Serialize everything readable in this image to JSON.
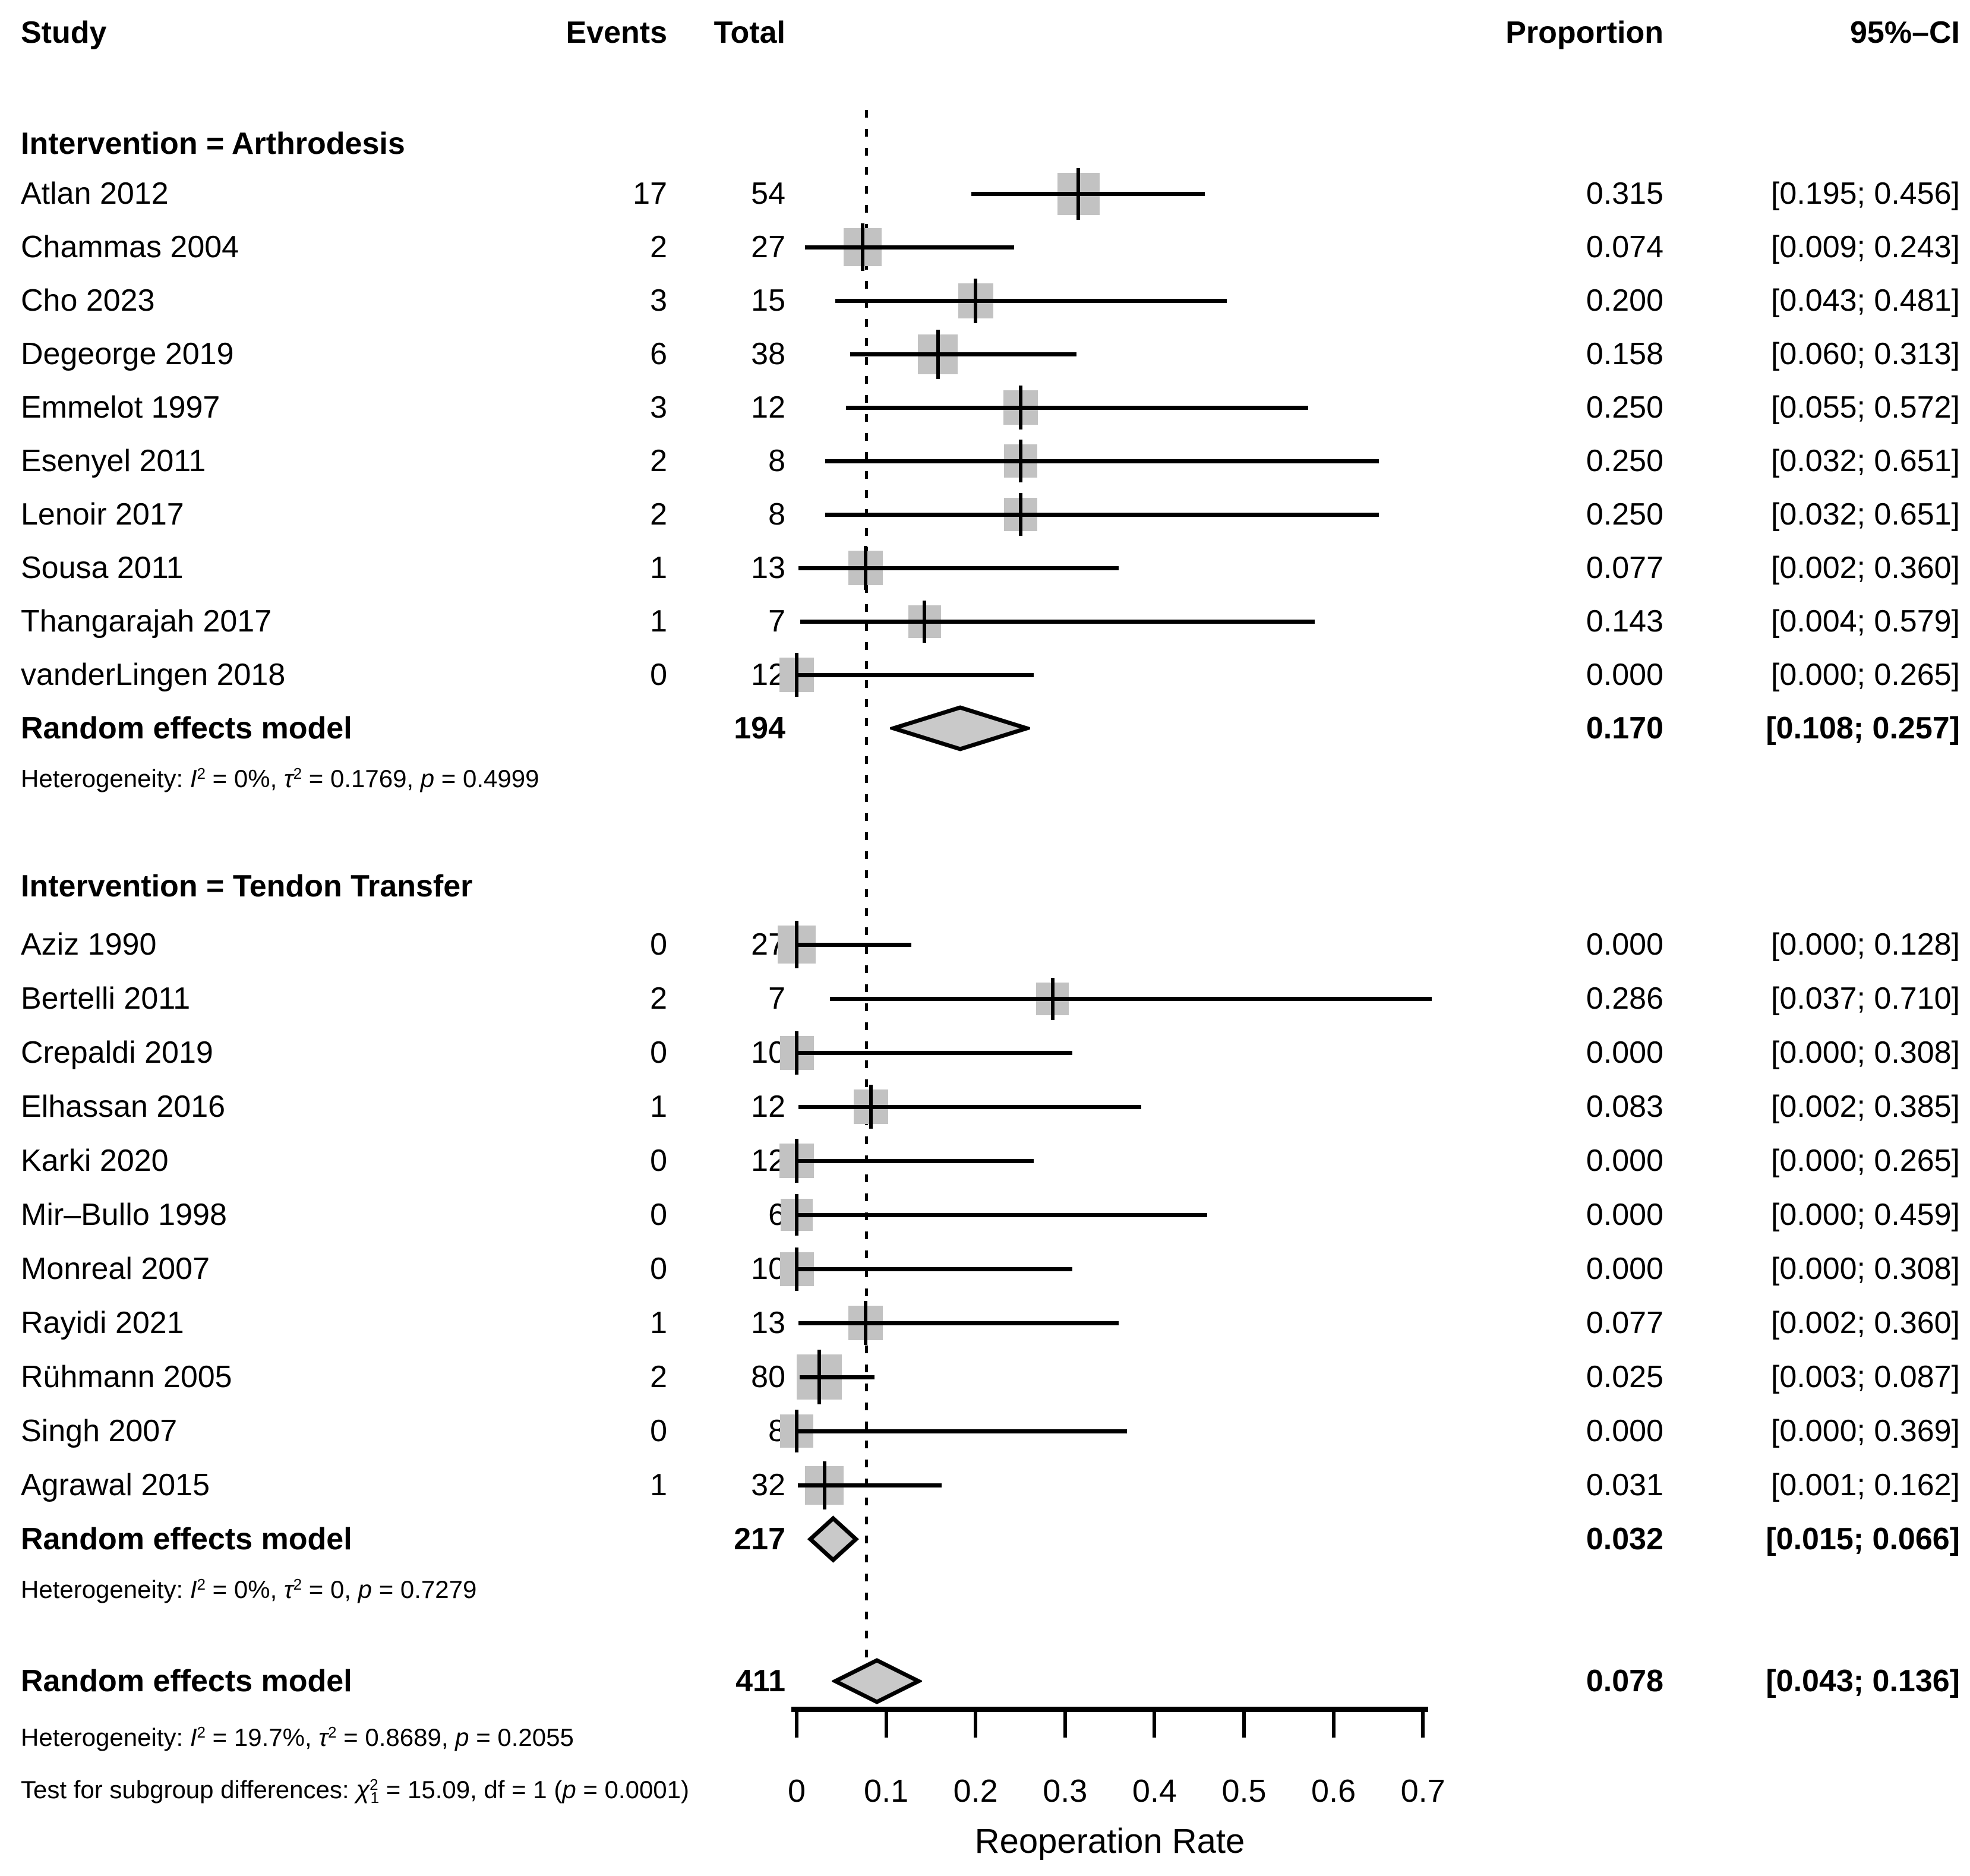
{
  "header": {
    "study": "Study",
    "events": "Events",
    "total": "Total",
    "proportion": "Proportion",
    "ci": "95%–CI"
  },
  "colors": {
    "background": "#ffffff",
    "text": "#000000",
    "line": "#000000",
    "square_fill": "#c2c2c2",
    "diamond_fill": "#c9c9c9"
  },
  "chart_data": {
    "type": "forest",
    "xlabel": "Reoperation Rate",
    "xlim": [
      0,
      0.7
    ],
    "x_ticks": [
      0,
      0.1,
      0.2,
      0.3,
      0.4,
      0.5,
      0.6,
      0.7
    ],
    "reference_line": 0.078,
    "grid": false,
    "groups": [
      {
        "heading": "Intervention = Arthrodesis",
        "studies": [
          {
            "label": "Atlan 2012",
            "events": 17,
            "total": 54,
            "proportion": 0.315,
            "ci_lower": 0.195,
            "ci_upper": 0.456
          },
          {
            "label": "Chammas 2004",
            "events": 2,
            "total": 27,
            "proportion": 0.074,
            "ci_lower": 0.009,
            "ci_upper": 0.243
          },
          {
            "label": "Cho 2023",
            "events": 3,
            "total": 15,
            "proportion": 0.2,
            "ci_lower": 0.043,
            "ci_upper": 0.481
          },
          {
            "label": "Degeorge 2019",
            "events": 6,
            "total": 38,
            "proportion": 0.158,
            "ci_lower": 0.06,
            "ci_upper": 0.313
          },
          {
            "label": "Emmelot 1997",
            "events": 3,
            "total": 12,
            "proportion": 0.25,
            "ci_lower": 0.055,
            "ci_upper": 0.572
          },
          {
            "label": "Esenyel 2011",
            "events": 2,
            "total": 8,
            "proportion": 0.25,
            "ci_lower": 0.032,
            "ci_upper": 0.651
          },
          {
            "label": "Lenoir 2017",
            "events": 2,
            "total": 8,
            "proportion": 0.25,
            "ci_lower": 0.032,
            "ci_upper": 0.651
          },
          {
            "label": "Sousa 2011",
            "events": 1,
            "total": 13,
            "proportion": 0.077,
            "ci_lower": 0.002,
            "ci_upper": 0.36
          },
          {
            "label": "Thangarajah 2017",
            "events": 1,
            "total": 7,
            "proportion": 0.143,
            "ci_lower": 0.004,
            "ci_upper": 0.579
          },
          {
            "label": "vanderLingen 2018",
            "events": 0,
            "total": 12,
            "proportion": 0.0,
            "ci_lower": 0.0,
            "ci_upper": 0.265
          }
        ],
        "summary": {
          "label": "Random effects model",
          "total": 194,
          "proportion": 0.17,
          "ci_lower": 0.108,
          "ci_upper": 0.257
        },
        "heterogeneity": [
          {
            "t": "Heterogeneity: "
          },
          {
            "t": "I",
            "s": "i"
          },
          {
            "t": "2",
            "s": "sup"
          },
          {
            "t": " = 0%, "
          },
          {
            "t": "τ",
            "s": "i"
          },
          {
            "t": "2",
            "s": "sup"
          },
          {
            "t": " = 0.1769, "
          },
          {
            "t": "p",
            "s": "i"
          },
          {
            "t": " = 0.4999"
          }
        ]
      },
      {
        "heading": "Intervention = Tendon Transfer",
        "studies": [
          {
            "label": "Aziz 1990",
            "events": 0,
            "total": 27,
            "proportion": 0.0,
            "ci_lower": 0.0,
            "ci_upper": 0.128
          },
          {
            "label": "Bertelli 2011",
            "events": 2,
            "total": 7,
            "proportion": 0.286,
            "ci_lower": 0.037,
            "ci_upper": 0.71
          },
          {
            "label": "Crepaldi 2019",
            "events": 0,
            "total": 10,
            "proportion": 0.0,
            "ci_lower": 0.0,
            "ci_upper": 0.308
          },
          {
            "label": "Elhassan 2016",
            "events": 1,
            "total": 12,
            "proportion": 0.083,
            "ci_lower": 0.002,
            "ci_upper": 0.385
          },
          {
            "label": "Karki 2020",
            "events": 0,
            "total": 12,
            "proportion": 0.0,
            "ci_lower": 0.0,
            "ci_upper": 0.265
          },
          {
            "label": "Mir–Bullo 1998",
            "events": 0,
            "total": 6,
            "proportion": 0.0,
            "ci_lower": 0.0,
            "ci_upper": 0.459
          },
          {
            "label": "Monreal 2007",
            "events": 0,
            "total": 10,
            "proportion": 0.0,
            "ci_lower": 0.0,
            "ci_upper": 0.308
          },
          {
            "label": "Rayidi 2021",
            "events": 1,
            "total": 13,
            "proportion": 0.077,
            "ci_lower": 0.002,
            "ci_upper": 0.36
          },
          {
            "label": "Rühmann 2005",
            "events": 2,
            "total": 80,
            "proportion": 0.025,
            "ci_lower": 0.003,
            "ci_upper": 0.087
          },
          {
            "label": "Singh 2007",
            "events": 0,
            "total": 8,
            "proportion": 0.0,
            "ci_lower": 0.0,
            "ci_upper": 0.369
          },
          {
            "label": "Agrawal 2015",
            "events": 1,
            "total": 32,
            "proportion": 0.031,
            "ci_lower": 0.001,
            "ci_upper": 0.162
          }
        ],
        "summary": {
          "label": "Random effects model",
          "total": 217,
          "proportion": 0.032,
          "ci_lower": 0.015,
          "ci_upper": 0.066
        },
        "heterogeneity": [
          {
            "t": "Heterogeneity: "
          },
          {
            "t": "I",
            "s": "i"
          },
          {
            "t": "2",
            "s": "sup"
          },
          {
            "t": " = 0%, "
          },
          {
            "t": "τ",
            "s": "i"
          },
          {
            "t": "2",
            "s": "sup"
          },
          {
            "t": " = 0, "
          },
          {
            "t": "p",
            "s": "i"
          },
          {
            "t": " = 0.7279"
          }
        ]
      }
    ],
    "overall": {
      "label": "Random effects model",
      "total": 411,
      "proportion": 0.078,
      "ci_lower": 0.043,
      "ci_upper": 0.136
    },
    "overall_heterogeneity": [
      {
        "t": "Heterogeneity: "
      },
      {
        "t": "I",
        "s": "i"
      },
      {
        "t": "2",
        "s": "sup"
      },
      {
        "t": " = 19.7%, "
      },
      {
        "t": "τ",
        "s": "i"
      },
      {
        "t": "2",
        "s": "sup"
      },
      {
        "t": " = 0.8689, "
      },
      {
        "t": "p",
        "s": "i"
      },
      {
        "t": " = 0.2055"
      }
    ],
    "subgroup_test": [
      {
        "t": "Test for subgroup differences: "
      },
      {
        "t": "χ",
        "s": "i"
      },
      {
        "t": "2",
        "s": "sup"
      },
      {
        "t": "1",
        "s": "sub"
      },
      {
        "t": " = 15.09, df = 1 ("
      },
      {
        "t": "p",
        "s": "i"
      },
      {
        "t": " = 0.0001)"
      }
    ]
  }
}
